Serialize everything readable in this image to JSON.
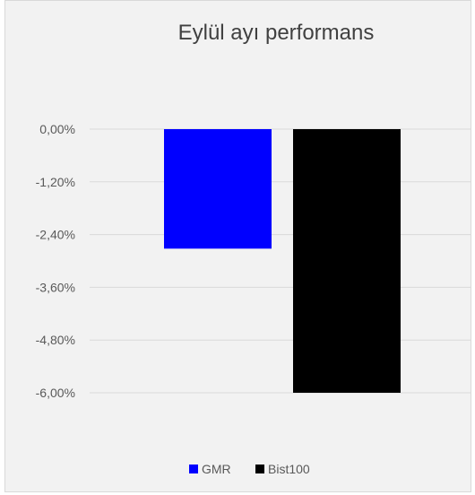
{
  "chart_data": {
    "type": "bar",
    "title": "Eylül ayı performans",
    "categories": [
      ""
    ],
    "series": [
      {
        "name": "GMR",
        "values": [
          -2.72
        ],
        "color": "#0000ff"
      },
      {
        "name": "Bist100",
        "values": [
          -6.0
        ],
        "color": "#000000"
      }
    ],
    "ylim": [
      -6.0,
      0.0
    ],
    "yticks": [
      0.0,
      -1.2,
      -2.4,
      -3.6,
      -4.8,
      -6.0
    ],
    "ytick_labels": [
      "0,00%",
      "-1,20%",
      "-2,40%",
      "-3,60%",
      "-4,80%",
      "-6,00%"
    ],
    "grid": true,
    "legend_position": "bottom"
  },
  "colors": {
    "background": "#f2f2f2",
    "gridline": "#d9d9d9"
  }
}
